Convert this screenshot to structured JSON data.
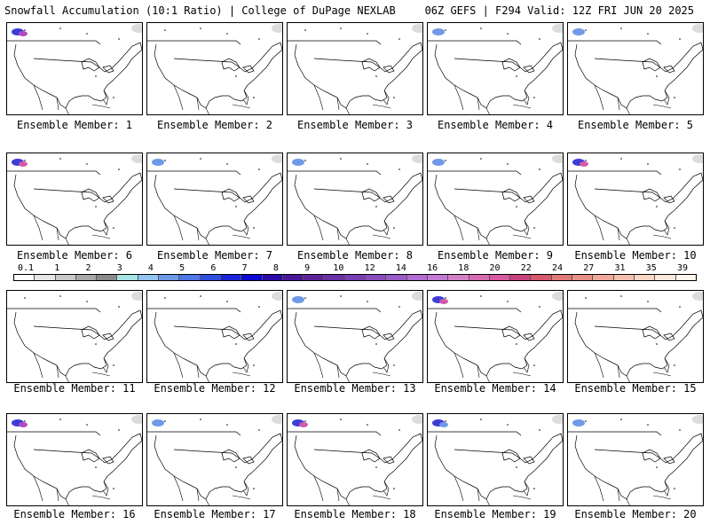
{
  "header": {
    "left": "Snowfall Accumulation (10:1 Ratio) | College of DuPage NEXLAB",
    "right": "06Z GEFS | F294 Valid: 12Z FRI JUN 20 2025"
  },
  "panels": [
    {
      "label": "Ensemble Member: 1",
      "snow": [
        {
          "c": "#3d3dd6"
        },
        {
          "c": "#b04ac0"
        }
      ]
    },
    {
      "label": "Ensemble Member: 2",
      "snow": []
    },
    {
      "label": "Ensemble Member: 3",
      "snow": []
    },
    {
      "label": "Ensemble Member: 4",
      "snow": [
        {
          "c": "#6f9ae8"
        }
      ]
    },
    {
      "label": "Ensemble Member: 5",
      "snow": [
        {
          "c": "#6f9ae8"
        }
      ]
    },
    {
      "label": "Ensemble Member: 6",
      "snow": [
        {
          "c": "#3d3dd6"
        },
        {
          "c": "#d25aa9"
        }
      ]
    },
    {
      "label": "Ensemble Member: 7",
      "snow": [
        {
          "c": "#6f9ae8"
        }
      ]
    },
    {
      "label": "Ensemble Member: 8",
      "snow": [
        {
          "c": "#6f9ae8"
        }
      ]
    },
    {
      "label": "Ensemble Member: 9",
      "snow": [
        {
          "c": "#6f9ae8"
        }
      ]
    },
    {
      "label": "Ensemble Member: 10",
      "snow": [
        {
          "c": "#3d3dd6"
        },
        {
          "c": "#d25aa9"
        }
      ]
    },
    {
      "label": "Ensemble Member: 11",
      "snow": []
    },
    {
      "label": "Ensemble Member: 12",
      "snow": []
    },
    {
      "label": "Ensemble Member: 13",
      "snow": [
        {
          "c": "#6f9ae8"
        }
      ]
    },
    {
      "label": "Ensemble Member: 14",
      "snow": [
        {
          "c": "#3d3dd6"
        },
        {
          "c": "#d25aa9"
        }
      ]
    },
    {
      "label": "Ensemble Member: 15",
      "snow": []
    },
    {
      "label": "Ensemble Member: 16",
      "snow": [
        {
          "c": "#3d3dd6"
        },
        {
          "c": "#b04ac0"
        }
      ]
    },
    {
      "label": "Ensemble Member: 17",
      "snow": [
        {
          "c": "#6f9ae8"
        }
      ]
    },
    {
      "label": "Ensemble Member: 18",
      "snow": [
        {
          "c": "#3d3dd6"
        },
        {
          "c": "#d25aa9"
        }
      ]
    },
    {
      "label": "Ensemble Member: 19",
      "snow": [
        {
          "c": "#3d3dd6"
        },
        {
          "c": "#6f9ae8"
        }
      ]
    },
    {
      "label": "Ensemble Member: 20",
      "snow": [
        {
          "c": "#6f9ae8"
        }
      ]
    }
  ],
  "colorbar": {
    "labels": [
      "0.1",
      "1",
      "2",
      "3",
      "4",
      "5",
      "6",
      "7",
      "8",
      "9",
      "10",
      "12",
      "14",
      "16",
      "18",
      "20",
      "22",
      "24",
      "27",
      "31",
      "35",
      "39"
    ],
    "colors": [
      "#ffffff",
      "#e6e6e6",
      "#c8c8c8",
      "#a8a8a8",
      "#8a8a8a",
      "#a6e3e3",
      "#92c4f0",
      "#6f9ae8",
      "#4d78e6",
      "#3050e0",
      "#1b24d8",
      "#0a0ad0",
      "#2a0aa8",
      "#4a169a",
      "#5c2299",
      "#6a30a6",
      "#7a3eb2",
      "#8a4dbd",
      "#9a5cc6",
      "#b06cd0",
      "#c27ad6",
      "#d280c8",
      "#d86ab0",
      "#d85aa0",
      "#c8447e",
      "#d8586e",
      "#e07878",
      "#e89088",
      "#f0a89a",
      "#f4c0ae",
      "#f8d6c4",
      "#fce8da",
      "#fff6ee"
    ]
  }
}
